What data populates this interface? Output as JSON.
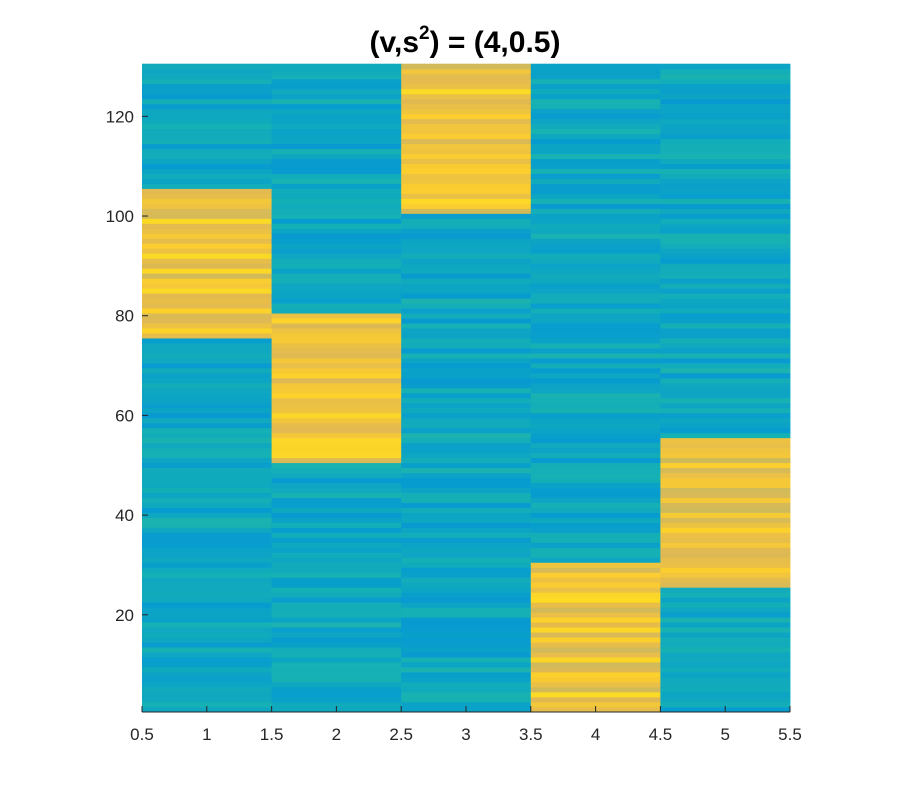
{
  "chart_data": {
    "type": "heatmap",
    "title": {
      "prefix": "(v,s",
      "superscript": "2",
      "suffix": ") = (4,0.5)"
    },
    "xlabel": "",
    "ylabel": "",
    "xlim": [
      0.5,
      5.5
    ],
    "ylim": [
      0.5,
      130.5
    ],
    "x_ticks": [
      0.5,
      1,
      1.5,
      2,
      2.5,
      3,
      3.5,
      4,
      4.5,
      5,
      5.5
    ],
    "x_tick_labels": [
      "0.5",
      "1",
      "1.5",
      "2",
      "2.5",
      "3",
      "3.5",
      "4",
      "4.5",
      "5",
      "5.5"
    ],
    "y_ticks": [
      20,
      40,
      60,
      80,
      100,
      120
    ],
    "y_tick_labels": [
      "20",
      "40",
      "60",
      "80",
      "100",
      "120"
    ],
    "columns": [
      1,
      2,
      3,
      4,
      5
    ],
    "rows": {
      "start": 1,
      "end": 130
    },
    "value_range": [
      0,
      1
    ],
    "background_value": 0.45,
    "background_noise": 0.06,
    "high_value": 0.85,
    "high_noise": 0.08,
    "high_blocks": [
      {
        "column": 1,
        "row_start": 76,
        "row_end": 105
      },
      {
        "column": 2,
        "row_start": 51,
        "row_end": 80
      },
      {
        "column": 3,
        "row_start": 101,
        "row_end": 130
      },
      {
        "column": 4,
        "row_start": 1,
        "row_end": 30
      },
      {
        "column": 5,
        "row_start": 26,
        "row_end": 55
      }
    ],
    "colormap": "parula",
    "grid": false,
    "legend": "none"
  }
}
